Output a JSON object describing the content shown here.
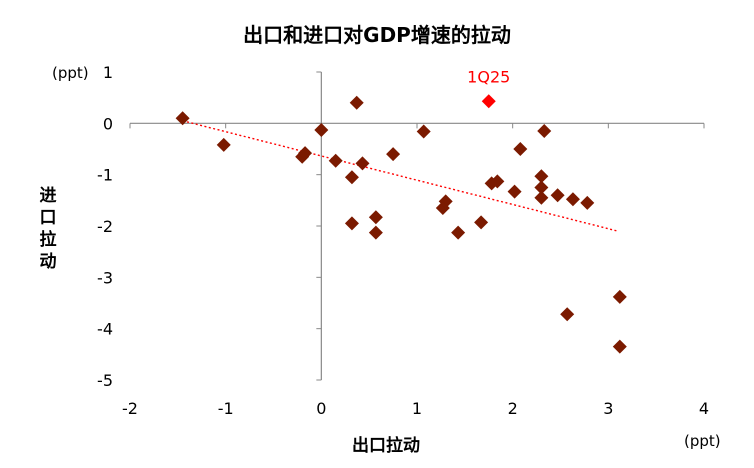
{
  "chart_data": {
    "type": "scatter",
    "title": "出口和进口对GDP增速的拉动",
    "xlabel": "出口拉动",
    "ylabel": "进口拉动",
    "x_unit": "(ppt)",
    "y_unit": "(ppt)",
    "xlim": [
      -2,
      4
    ],
    "ylim": [
      -5,
      1
    ],
    "xticks": [
      "-2",
      "-1",
      "0",
      "1",
      "2",
      "3",
      "4"
    ],
    "yticks": [
      "1",
      "0",
      "-1",
      "-2",
      "-3",
      "-4",
      "-5"
    ],
    "grid": false,
    "legend": "none",
    "marker_color": "#7b1a00",
    "highlight_color": "#ff0000",
    "trendline": {
      "x": [
        -1.45,
        3.1
      ],
      "y": [
        0.05,
        -2.1
      ],
      "style": "dotted",
      "color": "#ff0000"
    },
    "points": [
      {
        "x": -1.45,
        "y": 0.1
      },
      {
        "x": -1.02,
        "y": -0.42
      },
      {
        "x": -0.2,
        "y": -0.65
      },
      {
        "x": -0.17,
        "y": -0.58
      },
      {
        "x": 0.0,
        "y": -0.13
      },
      {
        "x": 0.15,
        "y": -0.73
      },
      {
        "x": 0.32,
        "y": -1.05
      },
      {
        "x": 0.37,
        "y": 0.4
      },
      {
        "x": 0.43,
        "y": -0.78
      },
      {
        "x": 0.32,
        "y": -1.95
      },
      {
        "x": 0.57,
        "y": -1.83
      },
      {
        "x": 0.57,
        "y": -2.13
      },
      {
        "x": 0.75,
        "y": -0.6
      },
      {
        "x": 1.07,
        "y": -0.16
      },
      {
        "x": 1.27,
        "y": -1.65
      },
      {
        "x": 1.3,
        "y": -1.52
      },
      {
        "x": 1.43,
        "y": -2.13
      },
      {
        "x": 1.67,
        "y": -1.93
      },
      {
        "x": 1.78,
        "y": -1.17
      },
      {
        "x": 1.84,
        "y": -1.13
      },
      {
        "x": 2.02,
        "y": -1.33
      },
      {
        "x": 2.08,
        "y": -0.5
      },
      {
        "x": 2.3,
        "y": -1.03
      },
      {
        "x": 2.3,
        "y": -1.25
      },
      {
        "x": 2.3,
        "y": -1.45
      },
      {
        "x": 2.33,
        "y": -0.15
      },
      {
        "x": 2.47,
        "y": -1.4
      },
      {
        "x": 2.63,
        "y": -1.48
      },
      {
        "x": 2.78,
        "y": -1.55
      },
      {
        "x": 2.57,
        "y": -3.72
      },
      {
        "x": 3.12,
        "y": -3.38
      },
      {
        "x": 3.12,
        "y": -4.35
      }
    ],
    "highlight": {
      "label": "1Q25",
      "x": 1.75,
      "y": 0.43
    }
  }
}
